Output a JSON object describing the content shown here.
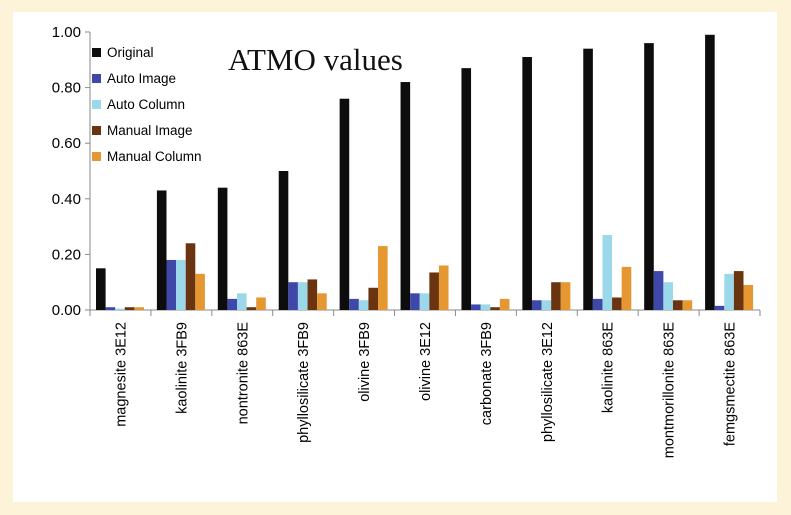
{
  "chart_data": {
    "type": "bar",
    "title": "ATMO values",
    "xlabel": "",
    "ylabel": "",
    "ylim": [
      0,
      1.0
    ],
    "yticks": [
      "0.00",
      "0.20",
      "0.40",
      "0.60",
      "0.80",
      "1.00"
    ],
    "legend_position": "top-left",
    "grid": false,
    "categories": [
      "magnesite 3E12",
      "kaolinite 3FB9",
      "nontronite 863E",
      "phyllosilicate 3FB9",
      "olivine 3FB9",
      "olivine 3E12",
      "carbonate 3FB9",
      "phyllosilicate 3E12",
      "kaolinite 863E",
      "montmorillonite 863E",
      "femgsmectite 863E"
    ],
    "series": [
      {
        "name": "Original",
        "color": "#0d0d0d",
        "values": [
          0.15,
          0.43,
          0.44,
          0.5,
          0.76,
          0.82,
          0.87,
          0.91,
          0.94,
          0.96,
          0.99
        ]
      },
      {
        "name": "Auto Image",
        "color": "#3f48a8",
        "values": [
          0.01,
          0.18,
          0.04,
          0.1,
          0.04,
          0.06,
          0.02,
          0.035,
          0.04,
          0.14,
          0.015
        ]
      },
      {
        "name": "Auto Column",
        "color": "#9ad8ea",
        "values": [
          0.005,
          0.18,
          0.06,
          0.1,
          0.035,
          0.06,
          0.02,
          0.035,
          0.27,
          0.1,
          0.13
        ]
      },
      {
        "name": "Manual Image",
        "color": "#6b3410",
        "values": [
          0.01,
          0.24,
          0.01,
          0.11,
          0.08,
          0.135,
          0.01,
          0.1,
          0.045,
          0.035,
          0.14
        ]
      },
      {
        "name": "Manual Column",
        "color": "#e59832",
        "values": [
          0.01,
          0.13,
          0.045,
          0.06,
          0.23,
          0.16,
          0.04,
          0.1,
          0.155,
          0.035,
          0.09
        ]
      }
    ]
  }
}
